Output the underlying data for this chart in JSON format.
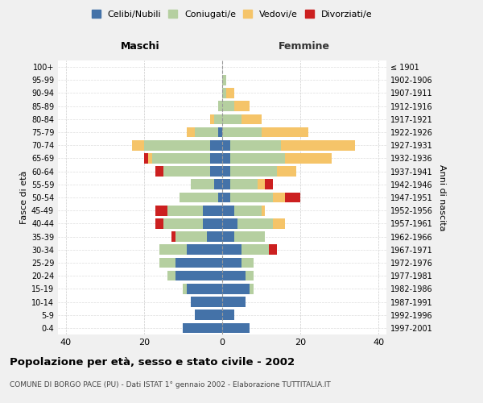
{
  "age_groups": [
    "0-4",
    "5-9",
    "10-14",
    "15-19",
    "20-24",
    "25-29",
    "30-34",
    "35-39",
    "40-44",
    "45-49",
    "50-54",
    "55-59",
    "60-64",
    "65-69",
    "70-74",
    "75-79",
    "80-84",
    "85-89",
    "90-94",
    "95-99",
    "100+"
  ],
  "birth_years": [
    "1997-2001",
    "1992-1996",
    "1987-1991",
    "1982-1986",
    "1977-1981",
    "1972-1976",
    "1967-1971",
    "1962-1966",
    "1957-1961",
    "1952-1956",
    "1947-1951",
    "1942-1946",
    "1937-1941",
    "1932-1936",
    "1927-1931",
    "1922-1926",
    "1917-1921",
    "1912-1916",
    "1907-1911",
    "1902-1906",
    "≤ 1901"
  ],
  "maschi": {
    "celibi": [
      10,
      7,
      8,
      9,
      12,
      12,
      9,
      4,
      5,
      5,
      1,
      2,
      3,
      3,
      3,
      1,
      0,
      0,
      0,
      0,
      0
    ],
    "coniugati": [
      0,
      0,
      0,
      1,
      2,
      4,
      7,
      8,
      10,
      9,
      10,
      6,
      12,
      15,
      17,
      6,
      2,
      1,
      0,
      0,
      0
    ],
    "vedovi": [
      0,
      0,
      0,
      0,
      0,
      0,
      0,
      0,
      0,
      0,
      0,
      0,
      0,
      1,
      3,
      2,
      1,
      0,
      0,
      0,
      0
    ],
    "divorziati": [
      0,
      0,
      0,
      0,
      0,
      0,
      0,
      1,
      2,
      3,
      0,
      0,
      2,
      1,
      0,
      0,
      0,
      0,
      0,
      0,
      0
    ]
  },
  "femmine": {
    "nubili": [
      7,
      3,
      6,
      7,
      6,
      5,
      5,
      3,
      4,
      3,
      2,
      2,
      2,
      2,
      2,
      0,
      0,
      0,
      0,
      0,
      0
    ],
    "coniugate": [
      0,
      0,
      0,
      1,
      2,
      3,
      7,
      8,
      9,
      7,
      11,
      7,
      12,
      14,
      13,
      10,
      5,
      3,
      1,
      1,
      0
    ],
    "vedove": [
      0,
      0,
      0,
      0,
      0,
      0,
      0,
      0,
      3,
      1,
      3,
      2,
      5,
      12,
      19,
      12,
      5,
      4,
      2,
      0,
      0
    ],
    "divorziate": [
      0,
      0,
      0,
      0,
      0,
      0,
      2,
      0,
      0,
      0,
      4,
      2,
      0,
      0,
      0,
      0,
      0,
      0,
      0,
      0,
      0
    ]
  },
  "colors": {
    "celibi": "#4472a8",
    "coniugati": "#b5cfa0",
    "vedovi": "#f5c469",
    "divorziati": "#cc2020"
  },
  "xlim": 42,
  "title": "Popolazione per età, sesso e stato civile - 2002",
  "subtitle": "COMUNE DI BORGO PACE (PU) - Dati ISTAT 1° gennaio 2002 - Elaborazione TUTTITALIA.IT",
  "xlabel_left": "Maschi",
  "xlabel_right": "Femmine",
  "ylabel_left": "Fasce di età",
  "ylabel_right": "Anni di nascita",
  "legend_labels": [
    "Celibi/Nubili",
    "Coniugati/e",
    "Vedovi/e",
    "Divorziati/e"
  ],
  "bg_color": "#f0f0f0",
  "plot_bg_color": "#ffffff"
}
